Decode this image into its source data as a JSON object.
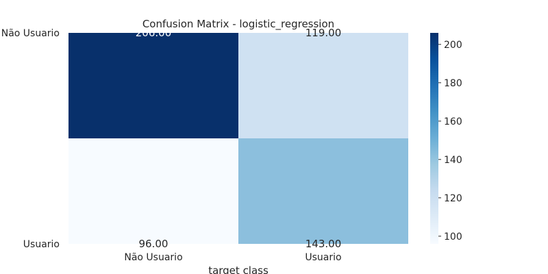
{
  "chart_data": {
    "type": "heatmap",
    "title": "Confusion Matrix - logistic_regression",
    "xlabel": "target class",
    "ylabel": "",
    "x_categories": [
      "Não Usuario",
      "Usuario"
    ],
    "y_categories": [
      "Não Usuario",
      "Usuario"
    ],
    "values": [
      [
        206,
        119
      ],
      [
        96,
        143
      ]
    ],
    "cell_labels": [
      [
        "206.00",
        "119.00"
      ],
      [
        "96.00",
        "143.00"
      ]
    ],
    "colormap": "Blues",
    "colorbar": {
      "range": [
        96,
        206
      ],
      "ticks": [
        100,
        120,
        140,
        160,
        180,
        200
      ],
      "tick_labels": [
        "100",
        "120",
        "140",
        "160",
        "180",
        "200"
      ]
    },
    "colors": {
      "cell_00": "#08306b",
      "cell_01": "#cfe1f2",
      "cell_10": "#f7fbff",
      "cell_11": "#8cbfdd"
    },
    "annotation_placement": "cell-top-bottom-edges",
    "grid": false
  }
}
